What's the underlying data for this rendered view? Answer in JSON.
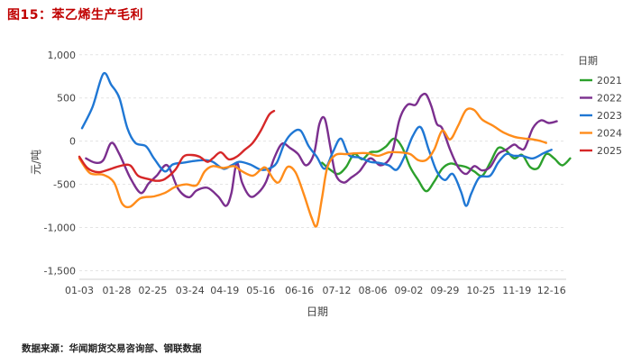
{
  "header": {
    "title": "图15：苯乙烯生产毛利"
  },
  "footer": {
    "source": "数据来源：华闻期货交易咨询部、钢联数据"
  },
  "chart_data": {
    "type": "line",
    "title": "",
    "xlabel": "日期",
    "ylabel": "元/吨",
    "ylim": [
      -1600,
      1050
    ],
    "yticks": [
      -1500,
      -1000,
      -500,
      0,
      500,
      1000
    ],
    "ytick_labels": [
      "-1,500",
      "-1,000",
      "-500",
      "0",
      "500",
      "1,000"
    ],
    "x_range": [
      0,
      365
    ],
    "xticks": [
      0,
      28,
      55,
      83,
      109,
      136,
      165,
      193,
      220,
      247,
      274,
      301,
      328,
      354
    ],
    "xtick_labels": [
      "01-03",
      "01-28",
      "02-25",
      "03-24",
      "04-19",
      "05-16",
      "06-16",
      "07-12",
      "08-06",
      "09-02",
      "09-29",
      "10-25",
      "11-19",
      "12-16"
    ],
    "legend_title": "日期",
    "legend_position": "right",
    "grid": "horizontal dashed",
    "series": [
      {
        "name": "2021",
        "color": "#2ca02c",
        "points": [
          [
            182,
            -250
          ],
          [
            188,
            -330
          ],
          [
            194,
            -380
          ],
          [
            200,
            -300
          ],
          [
            206,
            -150
          ],
          [
            212,
            -210
          ],
          [
            218,
            -130
          ],
          [
            224,
            -120
          ],
          [
            230,
            -60
          ],
          [
            236,
            30
          ],
          [
            242,
            -70
          ],
          [
            248,
            -300
          ],
          [
            254,
            -450
          ],
          [
            260,
            -580
          ],
          [
            266,
            -470
          ],
          [
            272,
            -320
          ],
          [
            278,
            -260
          ],
          [
            284,
            -280
          ],
          [
            290,
            -300
          ],
          [
            296,
            -350
          ],
          [
            302,
            -400
          ],
          [
            308,
            -250
          ],
          [
            314,
            -80
          ],
          [
            320,
            -110
          ],
          [
            326,
            -200
          ],
          [
            332,
            -160
          ],
          [
            338,
            -300
          ],
          [
            344,
            -310
          ],
          [
            350,
            -150
          ],
          [
            356,
            -200
          ],
          [
            362,
            -280
          ],
          [
            368,
            -200
          ]
        ]
      },
      {
        "name": "2022",
        "color": "#7b2f8e",
        "points": [
          [
            5,
            -200
          ],
          [
            12,
            -250
          ],
          [
            18,
            -220
          ],
          [
            24,
            -20
          ],
          [
            30,
            -150
          ],
          [
            38,
            -420
          ],
          [
            46,
            -600
          ],
          [
            52,
            -490
          ],
          [
            58,
            -400
          ],
          [
            66,
            -280
          ],
          [
            74,
            -550
          ],
          [
            82,
            -650
          ],
          [
            88,
            -570
          ],
          [
            96,
            -540
          ],
          [
            104,
            -640
          ],
          [
            110,
            -750
          ],
          [
            114,
            -600
          ],
          [
            118,
            -250
          ],
          [
            122,
            -480
          ],
          [
            128,
            -640
          ],
          [
            134,
            -600
          ],
          [
            140,
            -470
          ],
          [
            146,
            -200
          ],
          [
            152,
            -30
          ],
          [
            158,
            -80
          ],
          [
            164,
            -150
          ],
          [
            170,
            -280
          ],
          [
            176,
            -140
          ],
          [
            180,
            200
          ],
          [
            184,
            260
          ],
          [
            188,
            -50
          ],
          [
            192,
            -380
          ],
          [
            198,
            -480
          ],
          [
            204,
            -420
          ],
          [
            210,
            -350
          ],
          [
            218,
            -200
          ],
          [
            226,
            -280
          ],
          [
            234,
            -160
          ],
          [
            240,
            250
          ],
          [
            246,
            420
          ],
          [
            252,
            420
          ],
          [
            256,
            520
          ],
          [
            260,
            540
          ],
          [
            264,
            400
          ],
          [
            268,
            200
          ],
          [
            272,
            150
          ],
          [
            278,
            -100
          ],
          [
            284,
            -300
          ],
          [
            290,
            -380
          ],
          [
            296,
            -290
          ],
          [
            302,
            -340
          ],
          [
            308,
            -300
          ],
          [
            314,
            -150
          ],
          [
            320,
            -100
          ],
          [
            326,
            -40
          ],
          [
            330,
            -80
          ],
          [
            334,
            -80
          ],
          [
            340,
            150
          ],
          [
            346,
            240
          ],
          [
            352,
            210
          ],
          [
            358,
            230
          ]
        ]
      },
      {
        "name": "2023",
        "color": "#1f77d4",
        "points": [
          [
            2,
            150
          ],
          [
            10,
            400
          ],
          [
            18,
            780
          ],
          [
            24,
            650
          ],
          [
            30,
            500
          ],
          [
            36,
            150
          ],
          [
            42,
            -20
          ],
          [
            50,
            -60
          ],
          [
            56,
            -200
          ],
          [
            64,
            -350
          ],
          [
            70,
            -270
          ],
          [
            78,
            -250
          ],
          [
            86,
            -230
          ],
          [
            94,
            -220
          ],
          [
            100,
            -240
          ],
          [
            108,
            -320
          ],
          [
            114,
            -280
          ],
          [
            120,
            -240
          ],
          [
            128,
            -270
          ],
          [
            136,
            -330
          ],
          [
            142,
            -320
          ],
          [
            148,
            -250
          ],
          [
            154,
            -20
          ],
          [
            160,
            100
          ],
          [
            166,
            120
          ],
          [
            172,
            -60
          ],
          [
            178,
            -180
          ],
          [
            184,
            -320
          ],
          [
            190,
            -130
          ],
          [
            196,
            30
          ],
          [
            202,
            -160
          ],
          [
            210,
            -190
          ],
          [
            218,
            -240
          ],
          [
            224,
            -250
          ],
          [
            232,
            -280
          ],
          [
            238,
            -330
          ],
          [
            244,
            -170
          ],
          [
            250,
            60
          ],
          [
            256,
            160
          ],
          [
            262,
            -100
          ],
          [
            268,
            -350
          ],
          [
            274,
            -450
          ],
          [
            280,
            -380
          ],
          [
            286,
            -580
          ],
          [
            290,
            -750
          ],
          [
            294,
            -600
          ],
          [
            300,
            -420
          ],
          [
            308,
            -400
          ],
          [
            314,
            -250
          ],
          [
            320,
            -150
          ],
          [
            326,
            -170
          ],
          [
            332,
            -170
          ],
          [
            340,
            -200
          ],
          [
            348,
            -140
          ],
          [
            354,
            -100
          ]
        ]
      },
      {
        "name": "2024",
        "color": "#ff8c1a",
        "points": [
          [
            0,
            -200
          ],
          [
            8,
            -370
          ],
          [
            18,
            -390
          ],
          [
            26,
            -480
          ],
          [
            32,
            -720
          ],
          [
            38,
            -760
          ],
          [
            46,
            -660
          ],
          [
            56,
            -640
          ],
          [
            64,
            -600
          ],
          [
            72,
            -530
          ],
          [
            80,
            -500
          ],
          [
            88,
            -510
          ],
          [
            94,
            -350
          ],
          [
            100,
            -290
          ],
          [
            108,
            -310
          ],
          [
            116,
            -290
          ],
          [
            122,
            -350
          ],
          [
            130,
            -400
          ],
          [
            136,
            -330
          ],
          [
            140,
            -310
          ],
          [
            146,
            -450
          ],
          [
            150,
            -470
          ],
          [
            156,
            -300
          ],
          [
            162,
            -360
          ],
          [
            168,
            -600
          ],
          [
            174,
            -880
          ],
          [
            178,
            -980
          ],
          [
            182,
            -650
          ],
          [
            186,
            -300
          ],
          [
            192,
            -160
          ],
          [
            200,
            -150
          ],
          [
            208,
            -140
          ],
          [
            216,
            -140
          ],
          [
            224,
            -170
          ],
          [
            232,
            -130
          ],
          [
            240,
            -130
          ],
          [
            248,
            -150
          ],
          [
            254,
            -220
          ],
          [
            260,
            -220
          ],
          [
            266,
            -100
          ],
          [
            272,
            120
          ],
          [
            278,
            20
          ],
          [
            284,
            180
          ],
          [
            290,
            360
          ],
          [
            296,
            360
          ],
          [
            302,
            250
          ],
          [
            310,
            180
          ],
          [
            318,
            100
          ],
          [
            326,
            50
          ],
          [
            334,
            30
          ],
          [
            340,
            20
          ],
          [
            346,
            0
          ],
          [
            350,
            -20
          ]
        ]
      },
      {
        "name": "2025",
        "color": "#d62728",
        "points": [
          [
            0,
            -180
          ],
          [
            6,
            -310
          ],
          [
            14,
            -360
          ],
          [
            22,
            -330
          ],
          [
            30,
            -290
          ],
          [
            38,
            -280
          ],
          [
            44,
            -400
          ],
          [
            52,
            -440
          ],
          [
            58,
            -460
          ],
          [
            64,
            -440
          ],
          [
            72,
            -330
          ],
          [
            78,
            -180
          ],
          [
            84,
            -160
          ],
          [
            90,
            -180
          ],
          [
            96,
            -240
          ],
          [
            100,
            -200
          ],
          [
            106,
            -130
          ],
          [
            112,
            -210
          ],
          [
            118,
            -180
          ],
          [
            124,
            -100
          ],
          [
            130,
            -20
          ],
          [
            136,
            120
          ],
          [
            142,
            300
          ],
          [
            146,
            350
          ]
        ]
      }
    ]
  }
}
